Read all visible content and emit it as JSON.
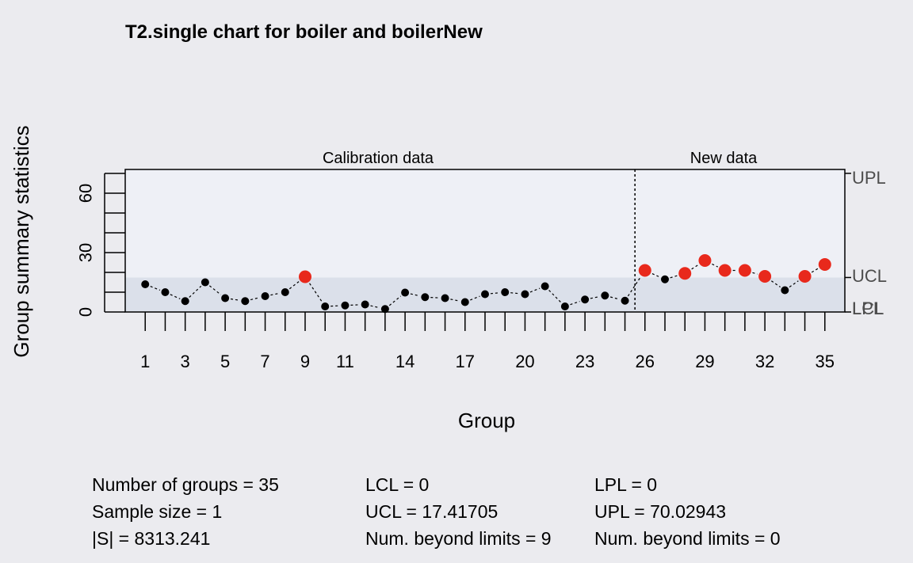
{
  "chart_data": {
    "type": "scatter",
    "title": "T2.single chart for boiler and boilerNew",
    "xlabel": "Group",
    "ylabel": "Group summary statistics",
    "xlim": [
      0,
      36
    ],
    "ylim": [
      0,
      72
    ],
    "y_ticks": [
      0,
      30,
      60
    ],
    "x_tick_labels": [
      1,
      3,
      5,
      7,
      9,
      11,
      14,
      17,
      20,
      23,
      26,
      29,
      32,
      35
    ],
    "section_labels": {
      "calibration": "Calibration data",
      "new": "New data"
    },
    "split_after_group": 25,
    "limits": {
      "UCL": 17.41705,
      "LCL": 0,
      "UPL": 70.02943,
      "LPL": 0
    },
    "limit_labels": {
      "upl": "UPL",
      "ucl": "UCL",
      "lcl": "LCL",
      "lpl": "LPL"
    },
    "colors": {
      "point": "#000000",
      "beyond": "#e8291c",
      "band": "#dbe0ea",
      "plot_bg": "#eef0f6"
    },
    "x": [
      1,
      2,
      3,
      4,
      5,
      6,
      7,
      8,
      9,
      10,
      11,
      12,
      13,
      14,
      15,
      16,
      17,
      18,
      19,
      20,
      21,
      22,
      23,
      24,
      25,
      26,
      27,
      28,
      29,
      30,
      31,
      32,
      33,
      34,
      35
    ],
    "y": [
      14,
      10,
      5.5,
      15,
      7,
      5.5,
      8,
      10,
      17.8,
      2.8,
      3.3,
      3.8,
      1.5,
      9.8,
      7.5,
      7,
      5,
      9,
      10,
      9,
      13,
      2.8,
      6.3,
      8.3,
      5.7,
      21,
      16.5,
      19.5,
      26,
      21,
      21,
      18,
      11,
      18,
      24
    ],
    "beyond_limits": [
      9,
      26,
      28,
      29,
      30,
      31,
      32,
      34,
      35
    ]
  },
  "stats": {
    "col1": [
      "Number of groups = 35",
      "Sample size = 1",
      "|S| = 8313.241"
    ],
    "col2": [
      "LCL = 0",
      "UCL = 17.41705",
      "Num. beyond limits = 9"
    ],
    "col3": [
      "LPL = 0",
      "UPL = 70.02943",
      "Num. beyond limits = 0"
    ]
  }
}
